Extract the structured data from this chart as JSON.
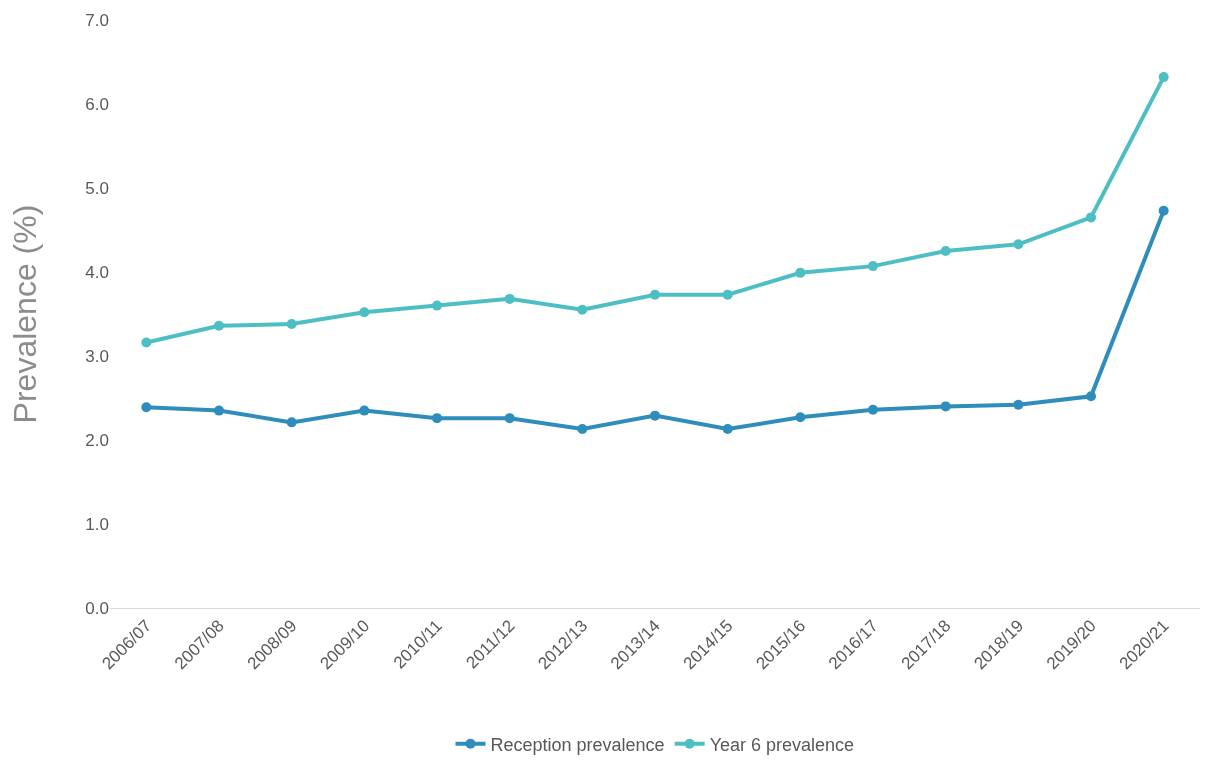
{
  "chart_data": {
    "type": "line",
    "ylabel": "Prevalence (%)",
    "categories": [
      "2006/07",
      "2007/08",
      "2008/09",
      "2009/10",
      "2010/11",
      "2011/12",
      "2012/13",
      "2013/14",
      "2014/15",
      "2015/16",
      "2016/17",
      "2017/18",
      "2018/19",
      "2019/20",
      "2020/21"
    ],
    "series": [
      {
        "name": "Reception prevalence",
        "color": "#2e8dbb",
        "values": [
          2.39,
          2.35,
          2.21,
          2.35,
          2.26,
          2.26,
          2.13,
          2.29,
          2.13,
          2.27,
          2.36,
          2.4,
          2.42,
          2.52,
          4.73
        ]
      },
      {
        "name": "Year 6 prevalence",
        "color": "#4dbfc4",
        "values": [
          3.16,
          3.36,
          3.38,
          3.52,
          3.6,
          3.68,
          3.55,
          3.73,
          3.73,
          3.99,
          4.07,
          4.25,
          4.33,
          4.65,
          6.32
        ]
      }
    ],
    "ylim": [
      0,
      7
    ],
    "yticks": [
      {
        "value": 0,
        "label": "0.0"
      },
      {
        "value": 1,
        "label": "1.0"
      },
      {
        "value": 2,
        "label": "2.0"
      },
      {
        "value": 3,
        "label": "3.0"
      },
      {
        "value": 4,
        "label": "4.0"
      },
      {
        "value": 5,
        "label": "5.0"
      },
      {
        "value": 6,
        "label": "6.0"
      },
      {
        "value": 7,
        "label": "7.0"
      }
    ],
    "grid": false,
    "legend": "bottom",
    "marker": "circle",
    "line_style": "solid"
  }
}
